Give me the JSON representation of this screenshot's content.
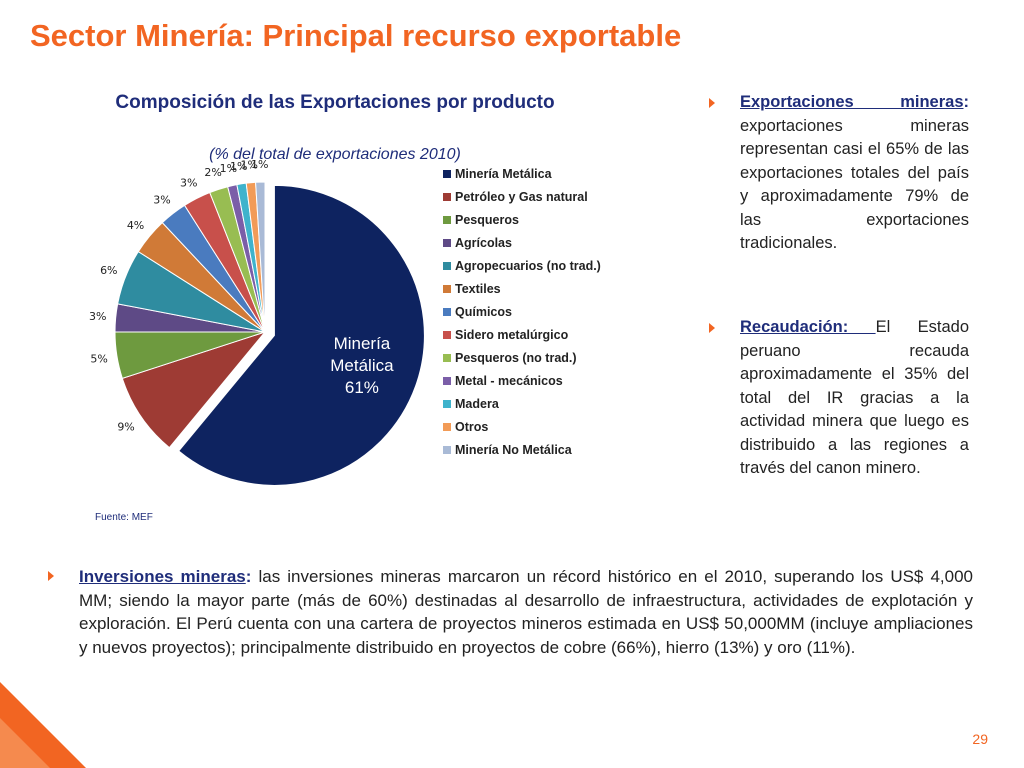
{
  "slide": {
    "title": "Sector Minería: Principal recurso exportable",
    "page_number": "29",
    "accent_color": "#f26522",
    "navy_color": "#1f2d7a"
  },
  "chart_data": {
    "type": "pie",
    "title": "Composición de las Exportaciones por producto",
    "subtitle": "(% del total de exportaciones 2010)",
    "source": "Fuente: MEF",
    "series": [
      {
        "name": "Minería Metálica",
        "value": 61,
        "label": "61%",
        "inside_label": [
          "Minería",
          "Metálica",
          "61%"
        ],
        "color": "#0e2360",
        "exploded": true
      },
      {
        "name": "Petróleo y Gas natural",
        "value": 9,
        "label": "9%",
        "color": "#9e3b34"
      },
      {
        "name": "Pesqueros",
        "value": 5,
        "label": "5%",
        "color": "#6e9a3f"
      },
      {
        "name": "Agrícolas",
        "value": 3,
        "label": "3%",
        "color": "#5e4a86"
      },
      {
        "name": "Agropecuarios (no trad.)",
        "value": 6,
        "label": "6%",
        "color": "#2f8ca0"
      },
      {
        "name": "Textiles",
        "value": 4,
        "label": "4%",
        "color": "#d07a37"
      },
      {
        "name": "Químicos",
        "value": 3,
        "label": "3%",
        "color": "#4a7bbf"
      },
      {
        "name": "Sidero metalúrgico",
        "value": 3,
        "label": "3%",
        "color": "#c8504b"
      },
      {
        "name": "Pesqueros (no trad.)",
        "value": 2,
        "label": "2%",
        "color": "#98bd52"
      },
      {
        "name": "Metal - mecánicos",
        "value": 1,
        "label": "1%",
        "color": "#7b5ea8"
      },
      {
        "name": "Madera",
        "value": 1,
        "label": "1%",
        "color": "#3fb3cc"
      },
      {
        "name": "Otros",
        "value": 1,
        "label": "1%",
        "color": "#f29b57"
      },
      {
        "name": "Minería No Metálica",
        "value": 1,
        "label": "1%",
        "color": "#a9bad6"
      }
    ]
  },
  "bullets": {
    "exportaciones": {
      "head": "Exportaciones mineras",
      "colon": ":",
      "text": " exportaciones mineras representan casi el 65% de las exportaciones totales del país y aproximadamente 79% de las exportaciones tradicionales."
    },
    "recaudacion": {
      "head": "Recaudación: ",
      "text": "El Estado peruano recauda aproximadamente el 35% del total del IR gracias a la actividad minera que luego es distribuido a las regiones a través del canon minero."
    },
    "inversiones": {
      "head": "Inversiones mineras",
      "colon": ":",
      "text": " las inversiones mineras marcaron un récord histórico en el 2010, superando los US$ 4,000 MM; siendo la mayor parte (más de 60%) destinadas al desarrollo de infraestructura, actividades de explotación y exploración. El Perú cuenta con una cartera de proyectos mineros estimada en US$ 50,000MM (incluye ampliaciones y nuevos proyectos); principalmente distribuido en proyectos de cobre (66%), hierro (13%) y oro (11%)."
    }
  }
}
